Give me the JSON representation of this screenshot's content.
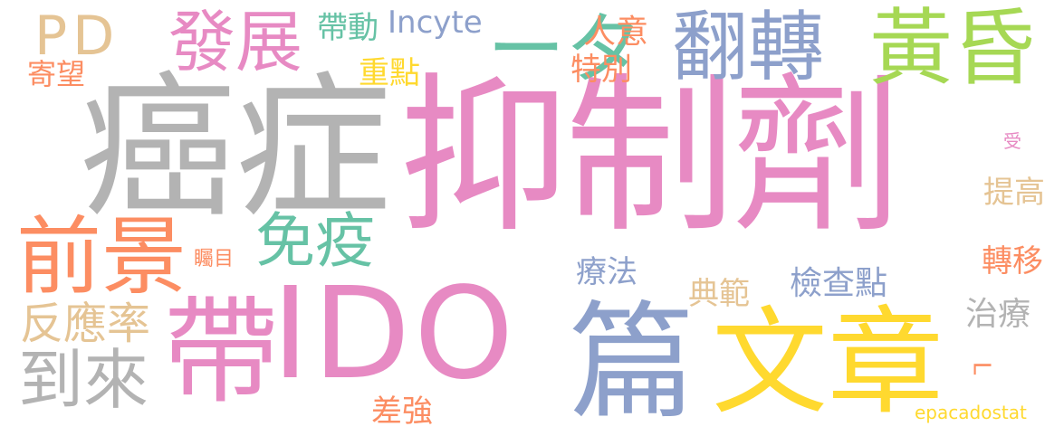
{
  "colors": {
    "pink": "#e78ac3",
    "gray": "#b3b3b3",
    "orange": "#fc8d62",
    "green": "#66c2a5",
    "blue": "#8da0cb",
    "yellow": "#ffd92f",
    "lime": "#a6d854",
    "tan": "#e5c494"
  },
  "words": [
    {
      "key": "yizhiji",
      "text": "抑制劑",
      "color": "#e78ac3"
    },
    {
      "key": "aizheng",
      "text": "癌症",
      "color": "#b3b3b3"
    },
    {
      "key": "ido",
      "text": "IDO",
      "color": "#e78ac3"
    },
    {
      "key": "dai",
      "text": "帶",
      "color": "#e78ac3"
    },
    {
      "key": "pian",
      "text": "篇",
      "color": "#8da0cb"
    },
    {
      "key": "wenzhang",
      "text": "文章",
      "color": "#ffd92f"
    },
    {
      "key": "fanzhuan",
      "text": "翻轉",
      "color": "#8da0cb"
    },
    {
      "key": "huanghun",
      "text": "黃昏",
      "color": "#a6d854"
    },
    {
      "key": "qianjing",
      "text": "前景",
      "color": "#fc8d62"
    },
    {
      "key": "fazhan",
      "text": "發展",
      "color": "#e78ac3"
    },
    {
      "key": "ita",
      "text": "ータ",
      "color": "#66c2a5"
    },
    {
      "key": "pd",
      "text": "PD",
      "color": "#e5c494"
    },
    {
      "key": "mianyi",
      "text": "免疫",
      "color": "#66c2a5"
    },
    {
      "key": "daolai",
      "text": "到來",
      "color": "#b3b3b3"
    },
    {
      "key": "fanyinglv",
      "text": "反應率",
      "color": "#e5c494"
    },
    {
      "key": "incyte",
      "text": "Incyte",
      "color": "#8da0cb"
    },
    {
      "key": "daidong",
      "text": "帶動",
      "color": "#66c2a5"
    },
    {
      "key": "zhongdian",
      "text": "重點",
      "color": "#ffd92f"
    },
    {
      "key": "renyi",
      "text": "人意",
      "color": "#fc8d62"
    },
    {
      "key": "tebie",
      "text": "特別",
      "color": "#fc8d62"
    },
    {
      "key": "jiwang",
      "text": "寄望",
      "color": "#fc8d62"
    },
    {
      "key": "liaofa",
      "text": "療法",
      "color": "#8da0cb"
    },
    {
      "key": "dianfan",
      "text": "典範",
      "color": "#e5c494"
    },
    {
      "key": "jianchadian",
      "text": "檢查點",
      "color": "#8da0cb"
    },
    {
      "key": "zhimu",
      "text": "矚目",
      "color": "#fc8d62"
    },
    {
      "key": "tigao",
      "text": "提高",
      "color": "#e5c494"
    },
    {
      "key": "zhuanyi",
      "text": "轉移",
      "color": "#fc8d62"
    },
    {
      "key": "zhiliao",
      "text": "治療",
      "color": "#b3b3b3"
    },
    {
      "key": "shou",
      "text": "受",
      "color": "#e78ac3"
    },
    {
      "key": "l",
      "text": "L",
      "color": "#fc8d62"
    },
    {
      "key": "chaqiang",
      "text": "差強",
      "color": "#fc8d62"
    },
    {
      "key": "epacadostat",
      "text": "epacadostat",
      "color": "#ffd92f"
    }
  ]
}
